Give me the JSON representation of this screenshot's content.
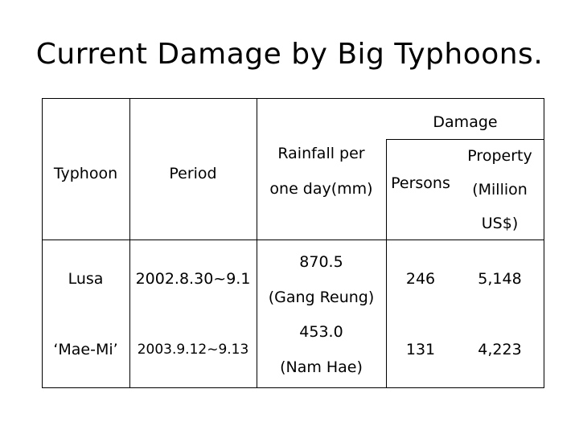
{
  "title": "Current Damage by Big Typhoons.",
  "table": {
    "header": {
      "damage": "Damage",
      "typhoon": "Typhoon",
      "period": "Period",
      "rainfall_l1": "Rainfall per",
      "rainfall_l2": "one day(mm)",
      "persons": "Persons",
      "property_l1": "Property",
      "property_l2": "(Million",
      "property_l3": "US$)"
    },
    "rows": [
      {
        "typhoon": "Lusa",
        "period": "2002.8.30~9.1",
        "rainfall": "870.5",
        "rainfall_place": "(Gang Reung)",
        "persons": "246",
        "property": "5,148"
      },
      {
        "typhoon": "‘Mae-Mi’",
        "period": "2003.9.12~9.13",
        "rainfall": "453.0",
        "rainfall_place": "(Nam Hae)",
        "persons": "131",
        "property": "4,223"
      }
    ]
  }
}
